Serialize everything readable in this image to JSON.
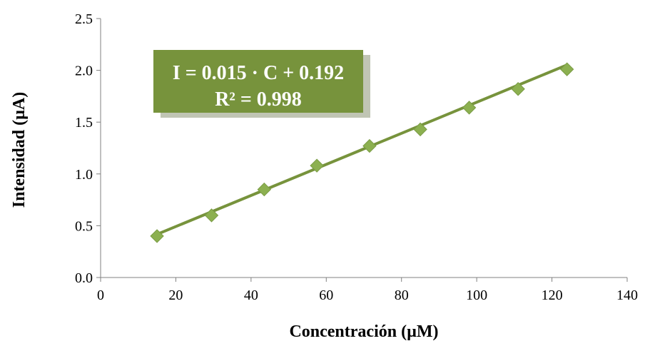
{
  "chart_data": {
    "type": "scatter",
    "title": "",
    "xlabel": "Concentración (µM)",
    "ylabel": "Intensidad (µA)",
    "xlim": [
      0,
      140
    ],
    "ylim": [
      0.0,
      2.5
    ],
    "x_ticks": [
      "0",
      "20",
      "40",
      "60",
      "80",
      "100",
      "120",
      "140"
    ],
    "y_ticks": [
      "0.0",
      "0.5",
      "1.0",
      "1.5",
      "2.0",
      "2.5"
    ],
    "grid": false,
    "legend": "none",
    "series": [
      {
        "marker": "diamond",
        "color": "#8CB050",
        "x": [
          15,
          29.5,
          43.5,
          57.5,
          71.5,
          85,
          98,
          111,
          124
        ],
        "y": [
          0.4,
          0.6,
          0.85,
          1.08,
          1.27,
          1.43,
          1.64,
          1.82,
          2.01
        ]
      }
    ],
    "trendline": {
      "color": "#77933C",
      "slope": 0.015,
      "intercept": 0.192,
      "x_range": [
        15,
        124
      ]
    },
    "annotation": {
      "line1": "I = 0.015 · C + 0.192",
      "line2": "R² = 0.998",
      "background": "#77933C"
    }
  }
}
